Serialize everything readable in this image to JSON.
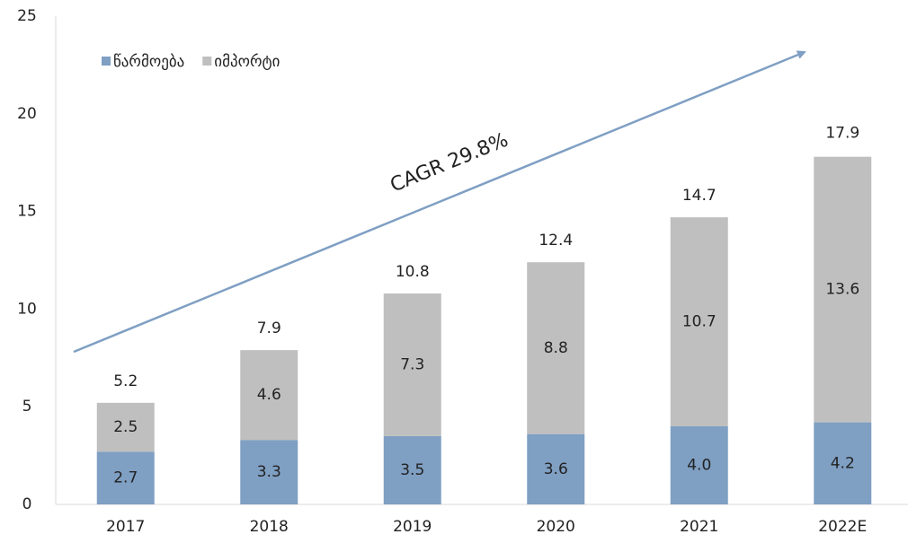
{
  "chart_data": {
    "type": "bar",
    "stacked": true,
    "categories": [
      "2017",
      "2018",
      "2019",
      "2020",
      "2021",
      "2022E"
    ],
    "series": [
      {
        "name": "წარმოება",
        "color": "#7f9fc3",
        "values": [
          2.7,
          3.3,
          3.5,
          3.6,
          4.0,
          4.2
        ],
        "value_labels": [
          "2.7",
          "3.3",
          "3.5",
          "3.6",
          "4.0",
          "4.2"
        ]
      },
      {
        "name": "იმპორტი",
        "color": "#bfbfbf",
        "values": [
          2.5,
          4.6,
          7.3,
          8.8,
          10.7,
          13.6
        ]
      }
    ],
    "totals": [
      5.2,
      7.9,
      10.8,
      12.4,
      14.7,
      17.9
    ],
    "annotation": "CAGR 29.8%",
    "ylim": [
      0,
      25
    ],
    "yticks": [
      0,
      5,
      10,
      15,
      20,
      25
    ],
    "grid": false,
    "legend": "top-left"
  }
}
